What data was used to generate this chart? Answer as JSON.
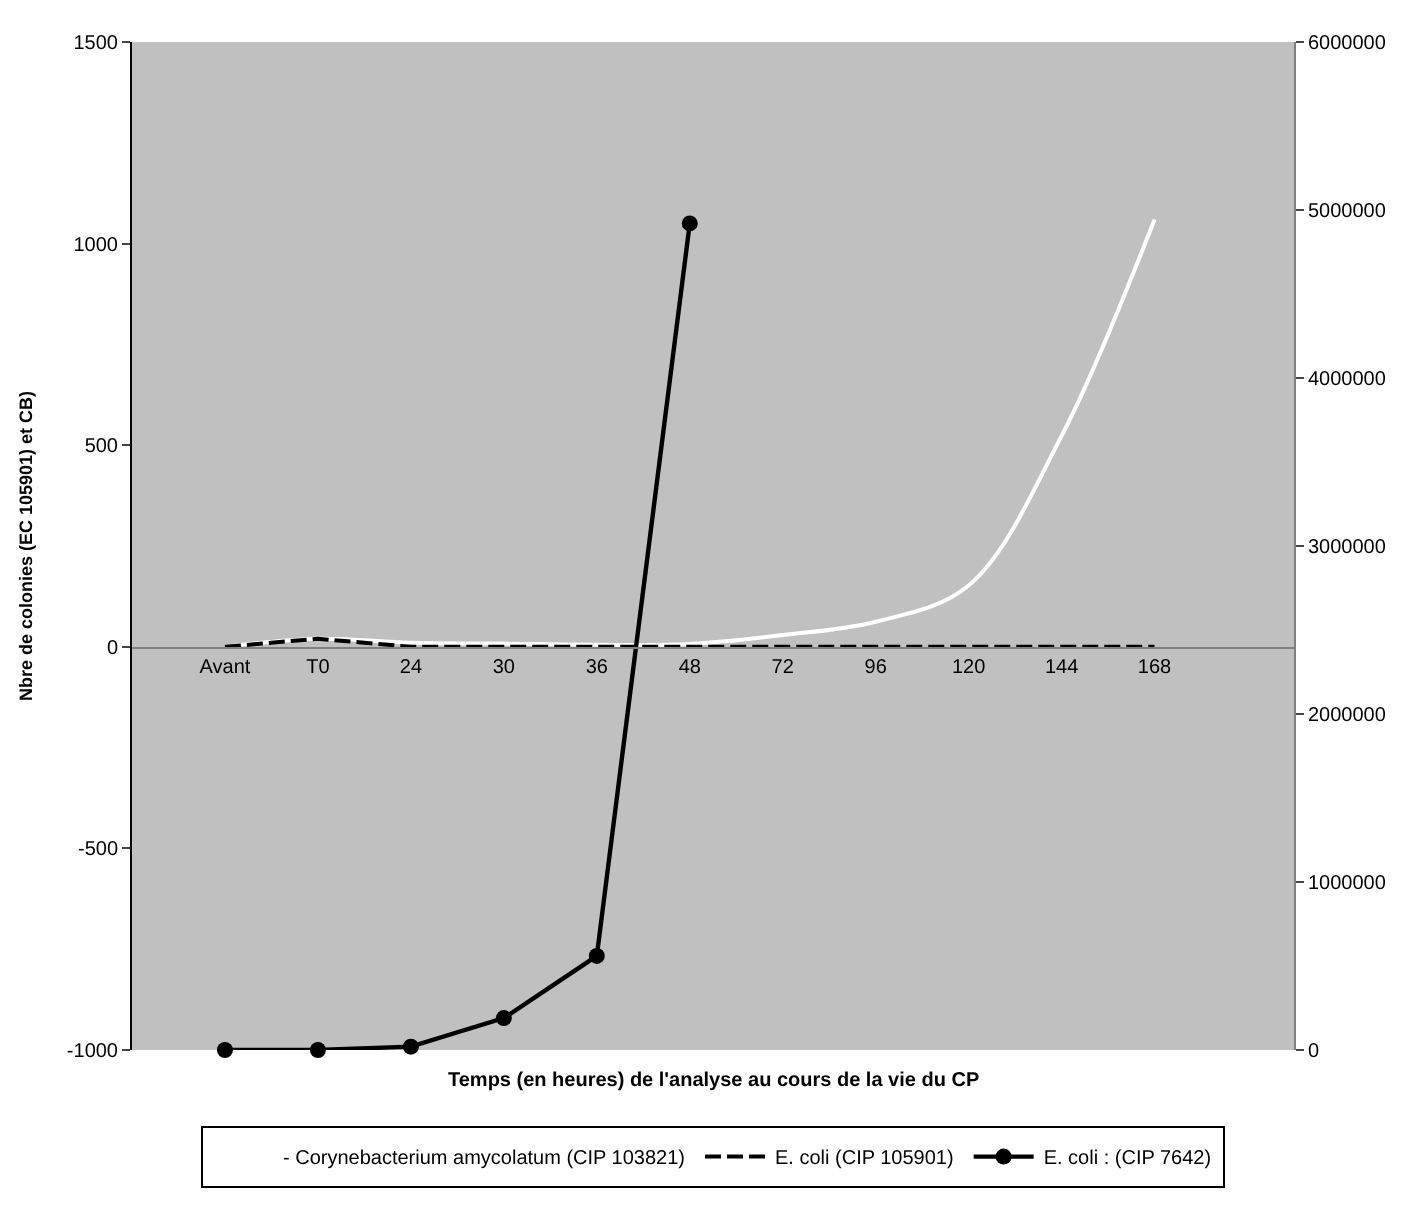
{
  "chart_data": {
    "type": "line",
    "xlabel": "Temps (en heures) de l'analyse au cours de la vie du CP",
    "ylabel": "Nbre de colonies (EC 105901) et CB)",
    "categories": [
      "Avant",
      "T0",
      "24",
      "30",
      "36",
      "48",
      "72",
      "96",
      "120",
      "144",
      "168"
    ],
    "series": [
      {
        "name": "- Corynebacterium amycolatum (CIP 103821)",
        "color": "#ffffff",
        "line_style": "solid",
        "marker": "none",
        "values": [
          0,
          20,
          10,
          8,
          5,
          7,
          29,
          62,
          152,
          523,
          1060
        ]
      },
      {
        "name": "E. coli (CIP 105901)",
        "color": "#000000",
        "line_style": "dashed",
        "marker": "none",
        "values": [
          0,
          20,
          0,
          0,
          0,
          0,
          0,
          0,
          0,
          0,
          0
        ]
      },
      {
        "name": "E. coli : (CIP 7642)",
        "color": "#000000",
        "line_style": "solid",
        "marker": "circle",
        "axis": "y2",
        "values": [
          0,
          0,
          20000,
          190000,
          560000,
          4920000,
          null,
          null,
          null,
          null,
          null
        ]
      }
    ],
    "ylim": [
      -1000,
      1500
    ],
    "yticks": [
      -1000,
      -500,
      0,
      500,
      1000,
      1500
    ],
    "y2lim": [
      0,
      6000000
    ],
    "y2ticks": [
      0,
      1000000,
      2000000,
      3000000,
      4000000,
      5000000,
      6000000
    ],
    "grid": false,
    "legend": "bottom"
  }
}
